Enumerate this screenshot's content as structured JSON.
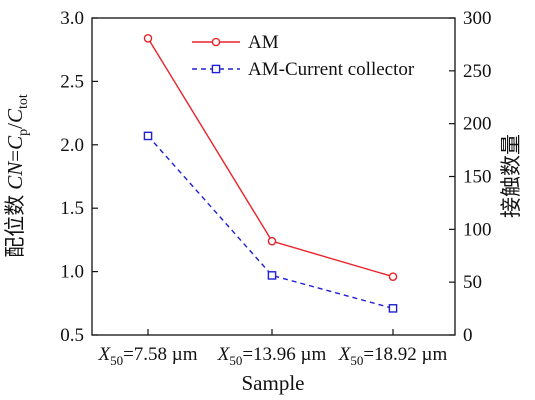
{
  "chart_data": {
    "type": "line",
    "categories": [
      "7.58",
      "13.96",
      "18.92"
    ],
    "category_prefix": "X",
    "category_prefix_sub": "50",
    "category_suffix": "=",
    "category_unit": " µm",
    "xlabel": "Sample",
    "ylabel": {
      "cjk": "配位数",
      "italic_cn": "CN",
      "eq": "=",
      "c": "C",
      "p": "p",
      "slash": "/",
      "tot": "tot"
    },
    "ylabel_right": "接触数量",
    "y_left_lim": [
      0.5,
      3.0
    ],
    "y_left_ticks": [
      "0.5",
      "1.0",
      "1.5",
      "2.0",
      "2.5",
      "3.0"
    ],
    "y_right_lim": [
      0,
      300
    ],
    "y_right_ticks": [
      "0",
      "50",
      "100",
      "150",
      "200",
      "250",
      "300"
    ],
    "grid": false,
    "legend_position": "top-right",
    "series": [
      {
        "name": "AM",
        "axis": "left",
        "values": [
          2.84,
          1.24,
          0.96
        ],
        "color": "#e8242a",
        "dash": "solid",
        "marker": "circle"
      },
      {
        "name": "AM-Current collector",
        "axis": "left",
        "values": [
          2.07,
          0.97,
          0.71
        ],
        "color": "#1f1fd6",
        "dash": "dashed",
        "marker": "square"
      }
    ]
  }
}
